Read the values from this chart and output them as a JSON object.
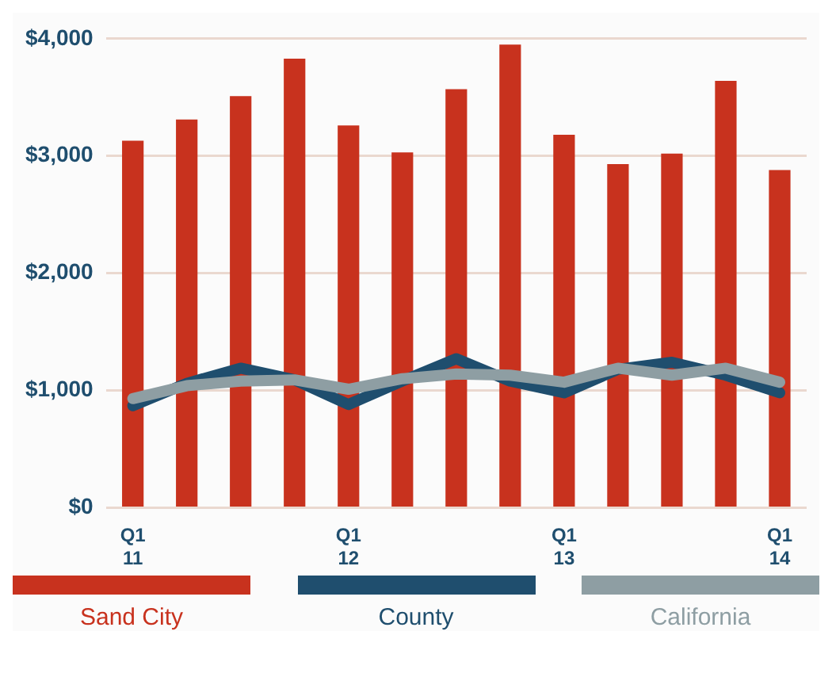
{
  "chart_data": {
    "type": "bar",
    "categories": [
      "Q1\n11",
      null,
      null,
      null,
      "Q1\n12",
      null,
      null,
      null,
      "Q1\n13",
      null,
      null,
      null,
      "Q1\n14"
    ],
    "series": [
      {
        "name": "Sand City",
        "color": "#c8321e",
        "values": [
          3130,
          3310,
          3510,
          3830,
          3260,
          3030,
          3570,
          3950,
          3180,
          2930,
          3020,
          3640,
          2880
        ]
      },
      {
        "name": "County",
        "type": "line",
        "color": "#1f4e6e",
        "values": [
          870,
          1060,
          1190,
          1090,
          880,
          1080,
          1270,
          1080,
          980,
          1180,
          1240,
          1130,
          980
        ]
      },
      {
        "name": "California",
        "type": "line",
        "color": "#8e9ea3",
        "values": [
          930,
          1040,
          1080,
          1090,
          1010,
          1100,
          1140,
          1130,
          1070,
          1190,
          1130,
          1190,
          1070
        ]
      }
    ],
    "ylim": [
      0,
      4000
    ],
    "yticks": [
      {
        "value": 0,
        "label": "$0"
      },
      {
        "value": 1000,
        "label": "$1,000"
      },
      {
        "value": 2000,
        "label": "$2,000"
      },
      {
        "value": 3000,
        "label": "$3,000"
      },
      {
        "value": 4000,
        "label": "$4,000"
      }
    ],
    "grid": "y",
    "legend": "bottom",
    "marker": "none"
  }
}
